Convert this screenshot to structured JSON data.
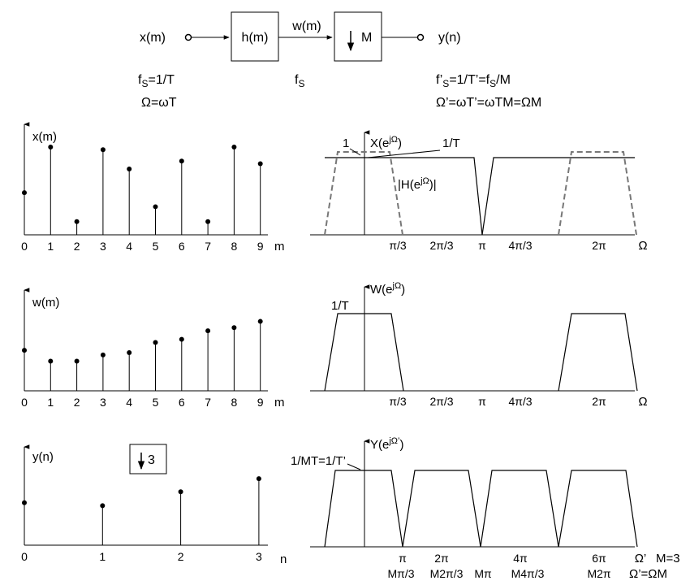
{
  "block": {
    "input": "x(m)",
    "filter": "h(m)",
    "mid": "w(m)",
    "down": "M",
    "output": "y(n)",
    "fs_in": "fS=1/T",
    "omega_in": "Ω=ωT",
    "fs_mid": "fS",
    "fs_out": "f’S=1/T’=fS/M",
    "omega_out": "Ω’=ωT’=ωTM=ΩM"
  },
  "plot_x": {
    "title": "x(m)",
    "axis_var": "m",
    "ticks": [
      "0",
      "1",
      "2",
      "3",
      "4",
      "5",
      "6",
      "7",
      "8",
      "9"
    ],
    "values": [
      0.48,
      1.0,
      0.15,
      0.97,
      0.75,
      0.32,
      0.84,
      0.15,
      1.0,
      0.81
    ]
  },
  "plot_w": {
    "title": "w(m)",
    "axis_var": "m",
    "ticks": [
      "0",
      "1",
      "2",
      "3",
      "4",
      "5",
      "6",
      "7",
      "8",
      "9"
    ],
    "values": [
      0.52,
      0.38,
      0.38,
      0.46,
      0.49,
      0.62,
      0.66,
      0.77,
      0.81,
      0.89
    ]
  },
  "plot_y": {
    "title": "y(n)",
    "axis_var": "n",
    "ticks": [
      "0",
      "1",
      "2",
      "3"
    ],
    "values": [
      0.58,
      0.54,
      0.73,
      0.91
    ],
    "decimator_label": "3"
  },
  "spec_x": {
    "title": "X(e^jΩ)",
    "amp_label": "1/T",
    "filter_gain": "1",
    "filter_label": "|H(e^jΩ)|",
    "ticks": [
      "π/3",
      "2π/3",
      "π",
      "4π/3",
      "2π"
    ],
    "axis_var": "Ω"
  },
  "spec_w": {
    "title": "W(e^jΩ)",
    "amp_label": "1/T",
    "ticks": [
      "π/3",
      "2π/3",
      "π",
      "4π/3",
      "2π"
    ],
    "axis_var": "Ω"
  },
  "spec_y": {
    "title": "Y(e^jΩ’)",
    "amp_label": "1/MT=1/T’",
    "ticks_top": [
      "π",
      "2π",
      "4π",
      "6π"
    ],
    "ticks_bottom": [
      "Mπ/3",
      "M2π/3",
      "Mπ",
      "M4π/3",
      "M2π"
    ],
    "axis_var": "Ω’",
    "note_m": "M=3",
    "note_rel": "Ω’=ΩM"
  }
}
